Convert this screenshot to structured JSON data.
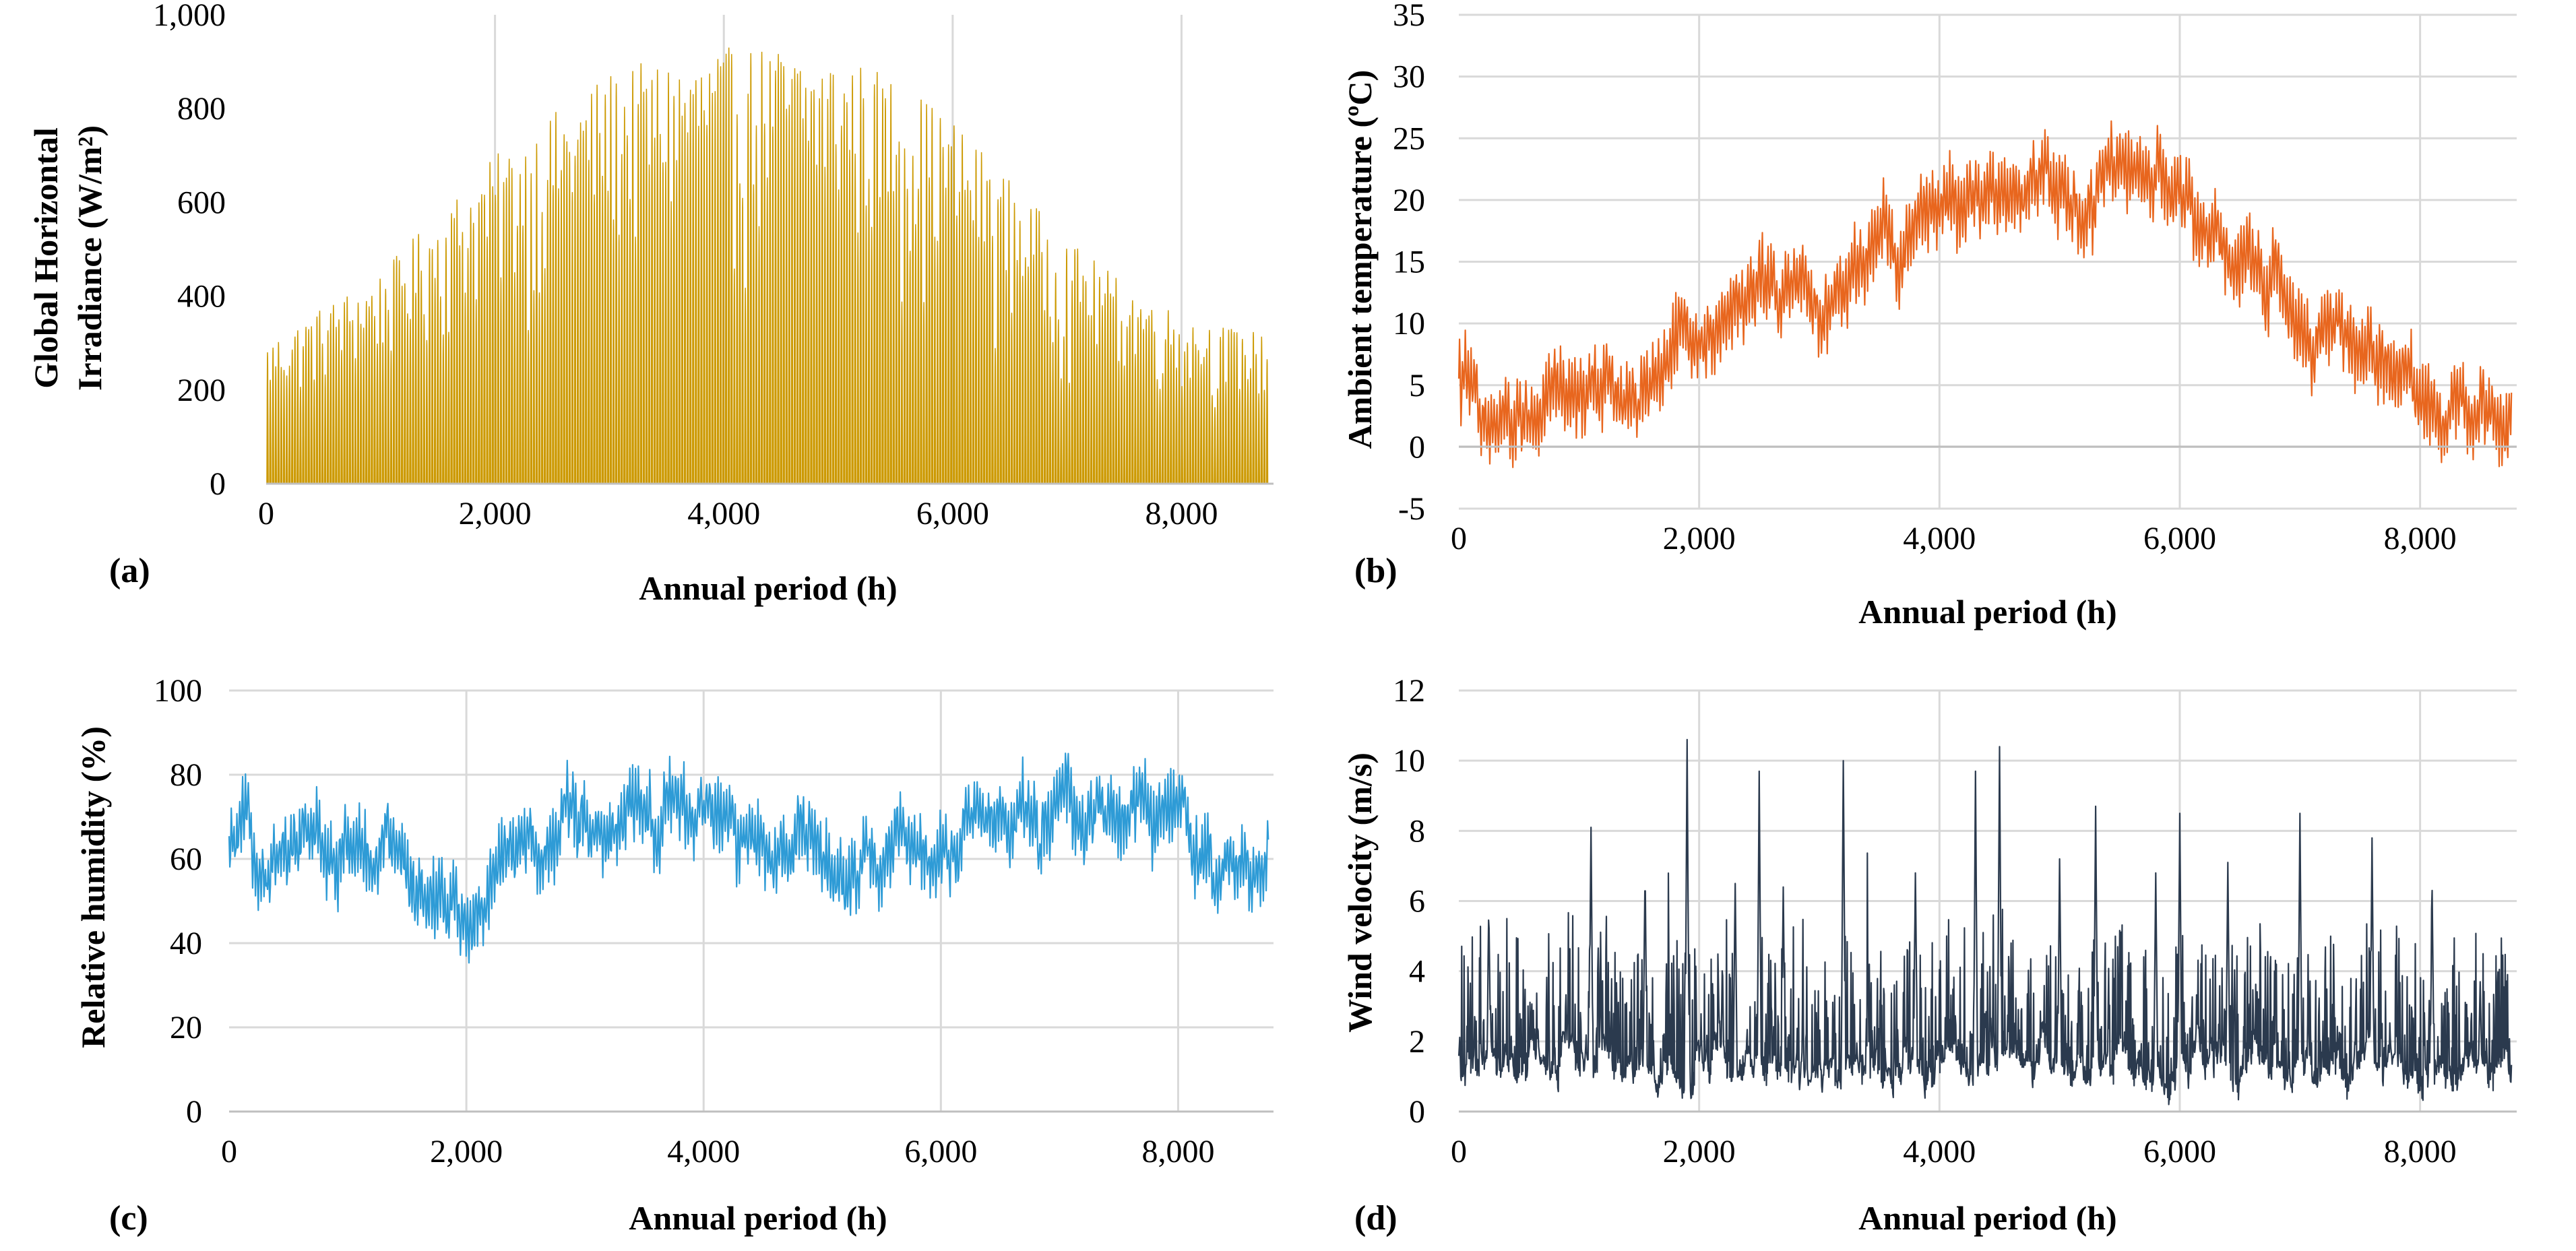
{
  "figure": {
    "panels": [
      {
        "label": "(a)"
      },
      {
        "label": "(b)"
      },
      {
        "label": "(c)"
      },
      {
        "label": "(d)"
      }
    ]
  },
  "chart_data": [
    {
      "type": "area",
      "series_color": "#cc9900",
      "ylabel_lines": [
        "Global Horizontal",
        "Irradiance (W/m²)"
      ],
      "xlabel": "Annual period (h)",
      "xlim": [
        0,
        8760
      ],
      "ylim": [
        0,
        1000
      ],
      "x_ticks": [
        0,
        2000,
        4000,
        6000,
        8000
      ],
      "x_tick_labels": [
        "0",
        "2,000",
        "4,000",
        "6,000",
        "8,000"
      ],
      "y_ticks": [
        0,
        200,
        400,
        600,
        800,
        1000
      ],
      "y_tick_labels": [
        "0",
        "200",
        "400",
        "600",
        "800",
        "1,000"
      ],
      "grid": "vertical",
      "envelope": {
        "x": [
          0,
          500,
          1000,
          1500,
          2000,
          2500,
          3000,
          3500,
          4000,
          4500,
          5000,
          5500,
          6000,
          6500,
          7000,
          7500,
          8000,
          8500,
          8760
        ],
        "y": [
          300,
          380,
          450,
          580,
          700,
          790,
          880,
          910,
          930,
          935,
          920,
          870,
          780,
          650,
          520,
          430,
          360,
          330,
          320
        ]
      }
    },
    {
      "type": "line",
      "series_color": "#e8661e",
      "ylabel": "Ambient temperature (ºC)",
      "xlabel": "Annual period (h)",
      "xlim": [
        0,
        8760
      ],
      "ylim": [
        -5,
        35
      ],
      "x_ticks": [
        0,
        2000,
        4000,
        6000,
        8000
      ],
      "x_tick_labels": [
        "0",
        "2,000",
        "4,000",
        "6,000",
        "8,000"
      ],
      "y_ticks": [
        -5,
        0,
        5,
        10,
        15,
        20,
        25,
        30,
        35
      ],
      "y_tick_labels": [
        "-5",
        "0",
        "5",
        "10",
        "15",
        "20",
        "25",
        "30",
        "35"
      ],
      "grid": "both",
      "trend": {
        "x": [
          0,
          300,
          700,
          1000,
          1500,
          2000,
          2500,
          3000,
          3500,
          4000,
          4500,
          4900,
          5200,
          5600,
          6000,
          6500,
          7000,
          7500,
          8000,
          8400,
          8760
        ],
        "y": [
          6,
          1,
          3,
          3,
          5,
          10,
          13,
          11,
          15,
          19,
          20,
          23,
          19,
          23,
          19,
          15,
          11,
          8,
          5,
          3,
          3
        ]
      }
    },
    {
      "type": "line",
      "series_color": "#2e9bd6",
      "ylabel": "Relative humidity (%)",
      "xlabel": "Annual period (h)",
      "xlim": [
        0,
        8760
      ],
      "ylim": [
        0,
        100
      ],
      "x_ticks": [
        0,
        2000,
        4000,
        6000,
        8000
      ],
      "x_tick_labels": [
        "0",
        "2,000",
        "4,000",
        "6,000",
        "8,000"
      ],
      "y_ticks": [
        0,
        20,
        40,
        60,
        80,
        100
      ],
      "y_tick_labels": [
        "0",
        "20",
        "40",
        "60",
        "80",
        "100"
      ],
      "grid": "both",
      "trend": {
        "x": [
          0,
          500,
          1000,
          1500,
          2000,
          2200,
          2500,
          2900,
          3500,
          4000,
          4500,
          5000,
          5500,
          6000,
          6500,
          7000,
          7500,
          7800,
          8200,
          8760
        ],
        "y": [
          62,
          63,
          64,
          58,
          48,
          52,
          62,
          72,
          67,
          68,
          65,
          58,
          60,
          66,
          70,
          70,
          68,
          74,
          62,
          58
        ]
      }
    },
    {
      "type": "line",
      "series_color": "#2b3a4e",
      "ylabel": "Wind velocity (m/s)",
      "xlabel": "Annual period (h)",
      "xlim": [
        0,
        8760
      ],
      "ylim": [
        0,
        12
      ],
      "x_ticks": [
        0,
        2000,
        4000,
        6000,
        8000
      ],
      "x_tick_labels": [
        "0",
        "2,000",
        "4,000",
        "6,000",
        "8,000"
      ],
      "y_ticks": [
        0,
        2,
        4,
        6,
        8,
        10,
        12
      ],
      "y_tick_labels": [
        "0",
        "2",
        "4",
        "6",
        "8",
        "10",
        "12"
      ],
      "grid": "both",
      "baseline": 1.2,
      "peaks": {
        "x": [
          250,
          1100,
          1550,
          1900,
          2300,
          2500,
          2700,
          3200,
          3800,
          4300,
          4500,
          5000,
          5300,
          5800,
          6000,
          6400,
          7000,
          7600,
          8100,
          8500
        ],
        "y": [
          5.2,
          7.5,
          6.4,
          10.0,
          5.9,
          9.1,
          5.8,
          9.4,
          6.2,
          9.1,
          9.8,
          6.6,
          8.1,
          6.2,
          7.9,
          6.5,
          7.9,
          7.2,
          5.7,
          3.1
        ]
      }
    }
  ]
}
